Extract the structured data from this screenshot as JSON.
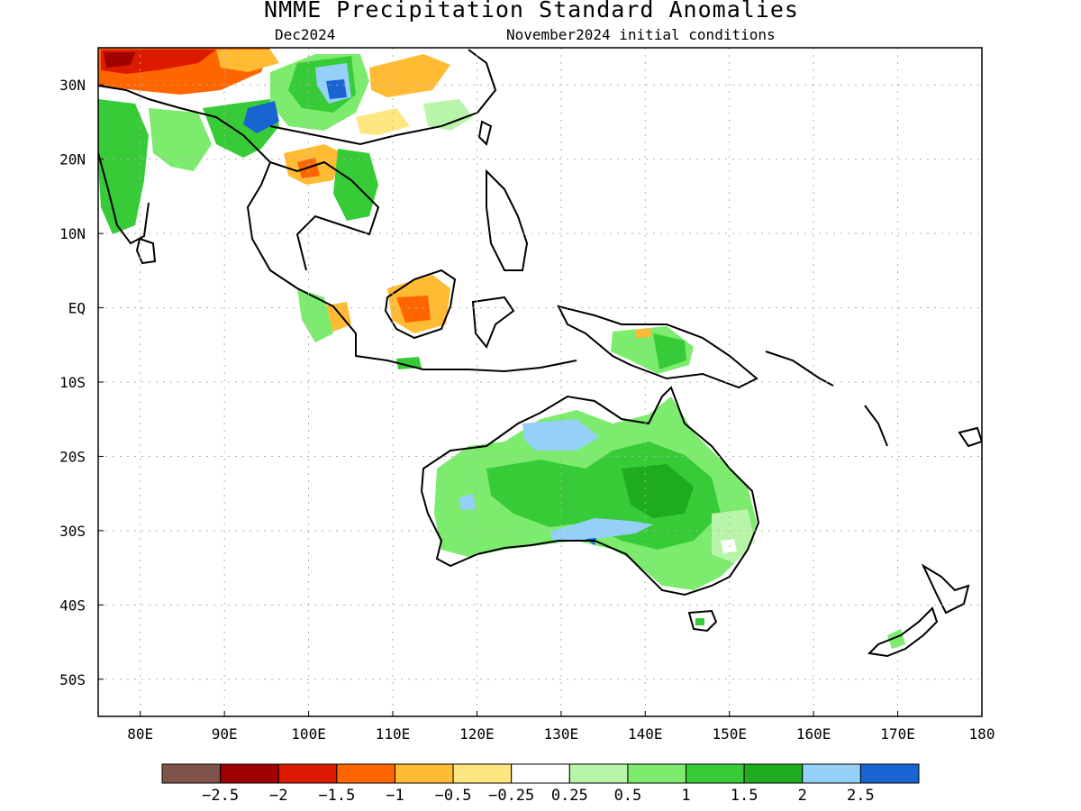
{
  "title": "NMME Precipitation Standard Anomalies",
  "valid_month": "Dec2024",
  "init_conditions": "November2024 initial conditions",
  "map": {
    "lon_range": [
      75,
      180
    ],
    "lat_range": [
      -55,
      35
    ],
    "grid": true,
    "lat_ticks": [
      {
        "lat": 30,
        "label": "30N"
      },
      {
        "lat": 20,
        "label": "20N"
      },
      {
        "lat": 10,
        "label": "10N"
      },
      {
        "lat": 0,
        "label": "EQ"
      },
      {
        "lat": -10,
        "label": "10S"
      },
      {
        "lat": -20,
        "label": "20S"
      },
      {
        "lat": -30,
        "label": "30S"
      },
      {
        "lat": -40,
        "label": "40S"
      },
      {
        "lat": -50,
        "label": "50S"
      }
    ],
    "lon_ticks": [
      {
        "lon": 80,
        "label": "80E"
      },
      {
        "lon": 90,
        "label": "90E"
      },
      {
        "lon": 100,
        "label": "100E"
      },
      {
        "lon": 110,
        "label": "110E"
      },
      {
        "lon": 120,
        "label": "120E"
      },
      {
        "lon": 130,
        "label": "130E"
      },
      {
        "lon": 140,
        "label": "140E"
      },
      {
        "lon": 150,
        "label": "150E"
      },
      {
        "lon": 160,
        "label": "160E"
      },
      {
        "lon": 170,
        "label": "170E"
      },
      {
        "lon": 180,
        "label": "180"
      }
    ]
  },
  "colorbar": {
    "colors": [
      "#7f534a",
      "#a10000",
      "#dc1a00",
      "#ff6600",
      "#ffbb33",
      "#ffe680",
      "#ffffff",
      "#b8f5a9",
      "#7deb6e",
      "#37cc37",
      "#1eab1e",
      "#95d0f9",
      "#1864d2"
    ],
    "labels": [
      "−2.5",
      "−2",
      "−1.5",
      "−1",
      "−0.5",
      "−0.25",
      "0.25",
      "0.5",
      "1",
      "1.5",
      "2",
      "2.5"
    ]
  },
  "regions": [
    {
      "name": "australia-anomaly",
      "level": "0.5 to 1.5 (green)",
      "color": "#37cc37"
    },
    {
      "name": "north-australia-wet",
      "level": "2 to 2.5",
      "color": "#95d0f9"
    },
    {
      "name": "borneo-dry",
      "level": "-1.5 to -0.5",
      "color": "#ff6600"
    },
    {
      "name": "tibet-wet",
      "level": "2.5+",
      "color": "#1864d2"
    },
    {
      "name": "india-dry-north",
      "level": "-2",
      "color": "#dc1a00"
    }
  ]
}
